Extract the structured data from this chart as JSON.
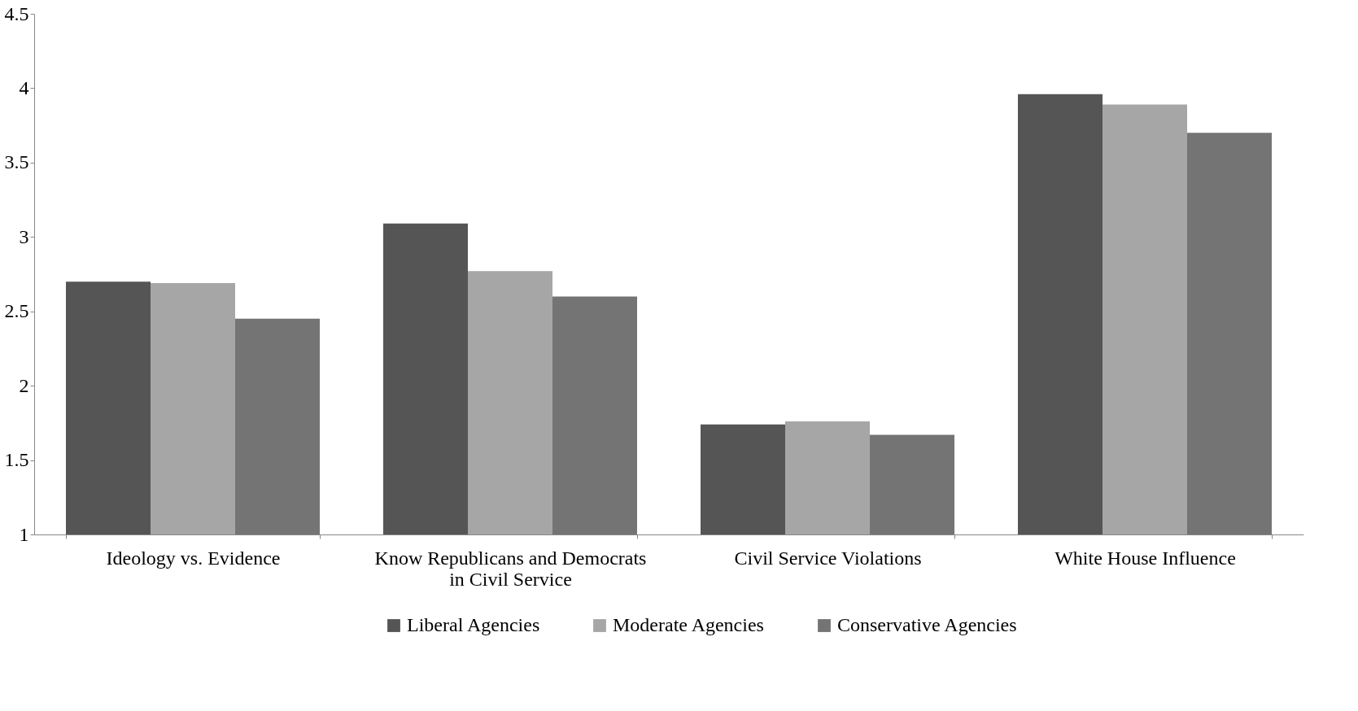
{
  "chart_data": {
    "type": "bar",
    "categories": [
      "Ideology vs. Evidence",
      "Know Republicans and Democrats in Civil Service",
      "Civil Service Violations",
      "White House Influence"
    ],
    "series": [
      {
        "name": "Liberal Agencies",
        "color": "#555555",
        "values": [
          2.7,
          3.09,
          1.74,
          3.96
        ]
      },
      {
        "name": "Moderate Agencies",
        "color": "#a6a6a6",
        "values": [
          2.69,
          2.77,
          1.76,
          3.89
        ]
      },
      {
        "name": "Conservative Agencies",
        "color": "#747474",
        "values": [
          2.45,
          2.6,
          1.67,
          3.7
        ]
      }
    ],
    "ylim": [
      1,
      4.5
    ],
    "yticks": [
      1,
      1.5,
      2,
      2.5,
      3,
      3.5,
      4,
      4.5
    ],
    "grid": false,
    "legend": "bottom"
  }
}
